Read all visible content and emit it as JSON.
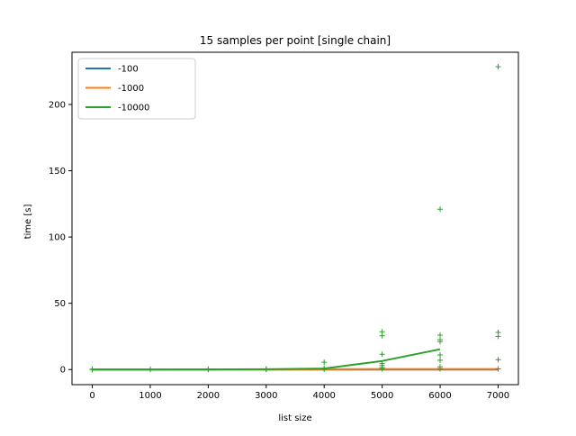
{
  "chart_data": {
    "type": "line",
    "title": "15 samples per point [single chain]",
    "xlabel": "list size",
    "ylabel": "time [s]",
    "xlim": [
      -350,
      7350
    ],
    "ylim": [
      -11.4,
      239.4
    ],
    "xticks": [
      0,
      1000,
      2000,
      3000,
      4000,
      5000,
      6000,
      7000
    ],
    "yticks": [
      0,
      50,
      100,
      150,
      200
    ],
    "legend_position": "top-left",
    "grid": false,
    "series": [
      {
        "name": "-100",
        "color": "#1f77b4",
        "x": [
          0,
          1000,
          2000,
          3000,
          4000,
          5000,
          6000,
          7000
        ],
        "y": [
          0,
          0,
          0,
          0,
          0,
          0,
          0,
          0
        ]
      },
      {
        "name": "-1000",
        "color": "#ff7f0e",
        "x": [
          0,
          1000,
          2000,
          3000,
          4000,
          5000,
          6000,
          7000
        ],
        "y": [
          0,
          0,
          0,
          0.1,
          0.2,
          0.4,
          0.4,
          0.4
        ]
      },
      {
        "name": "-10000",
        "color": "#2ca02c",
        "x": [
          0,
          1000,
          2000,
          3000,
          4000,
          5000,
          6000
        ],
        "y": [
          0,
          0,
          0.1,
          0.2,
          0.8,
          6.5,
          15.3
        ]
      }
    ],
    "scatter": [
      {
        "color": "#2ca02c",
        "marker": "+",
        "points": [
          [
            0,
            0
          ],
          [
            0,
            0.3
          ],
          [
            1000,
            0
          ],
          [
            1000,
            0.3
          ],
          [
            2000,
            0
          ],
          [
            2000,
            0.4
          ],
          [
            3000,
            0.1
          ],
          [
            3000,
            0.5
          ],
          [
            4000,
            0.2
          ],
          [
            4000,
            1.0
          ],
          [
            4000,
            5.5
          ],
          [
            5000,
            0.5
          ],
          [
            5000,
            1.5
          ],
          [
            5000,
            3.0
          ],
          [
            5000,
            4.5
          ],
          [
            5000,
            11.5
          ],
          [
            5000,
            25.5
          ],
          [
            5000,
            28.5
          ],
          [
            6000,
            0.5
          ],
          [
            6000,
            2.0
          ],
          [
            6000,
            7.0
          ],
          [
            6000,
            11.0
          ],
          [
            6000,
            21.0
          ],
          [
            6000,
            22.5
          ],
          [
            6000,
            26.0
          ],
          [
            6000,
            121.0
          ],
          [
            7000,
            0.5
          ],
          [
            7000,
            7.5
          ],
          [
            7000,
            25.0
          ],
          [
            7000,
            28.0
          ],
          [
            7000,
            228.5
          ]
        ]
      }
    ]
  }
}
